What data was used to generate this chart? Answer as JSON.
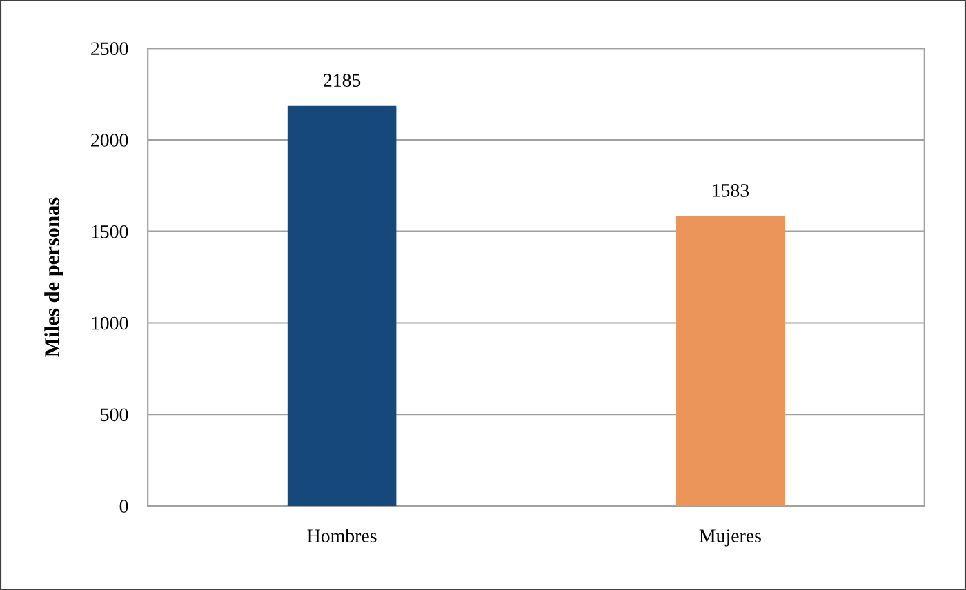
{
  "chart_data": {
    "type": "bar",
    "ylabel": "Miles de personas",
    "categories": [
      "Hombres",
      "Mujeres"
    ],
    "values": [
      2185,
      1583
    ],
    "colors": [
      "#17487b",
      "#eb955a"
    ],
    "ylim": [
      0,
      2500
    ],
    "yticks": [
      0,
      500,
      1000,
      1500,
      2000,
      2500
    ],
    "grid": "y",
    "data_labels": true,
    "legend": false
  }
}
